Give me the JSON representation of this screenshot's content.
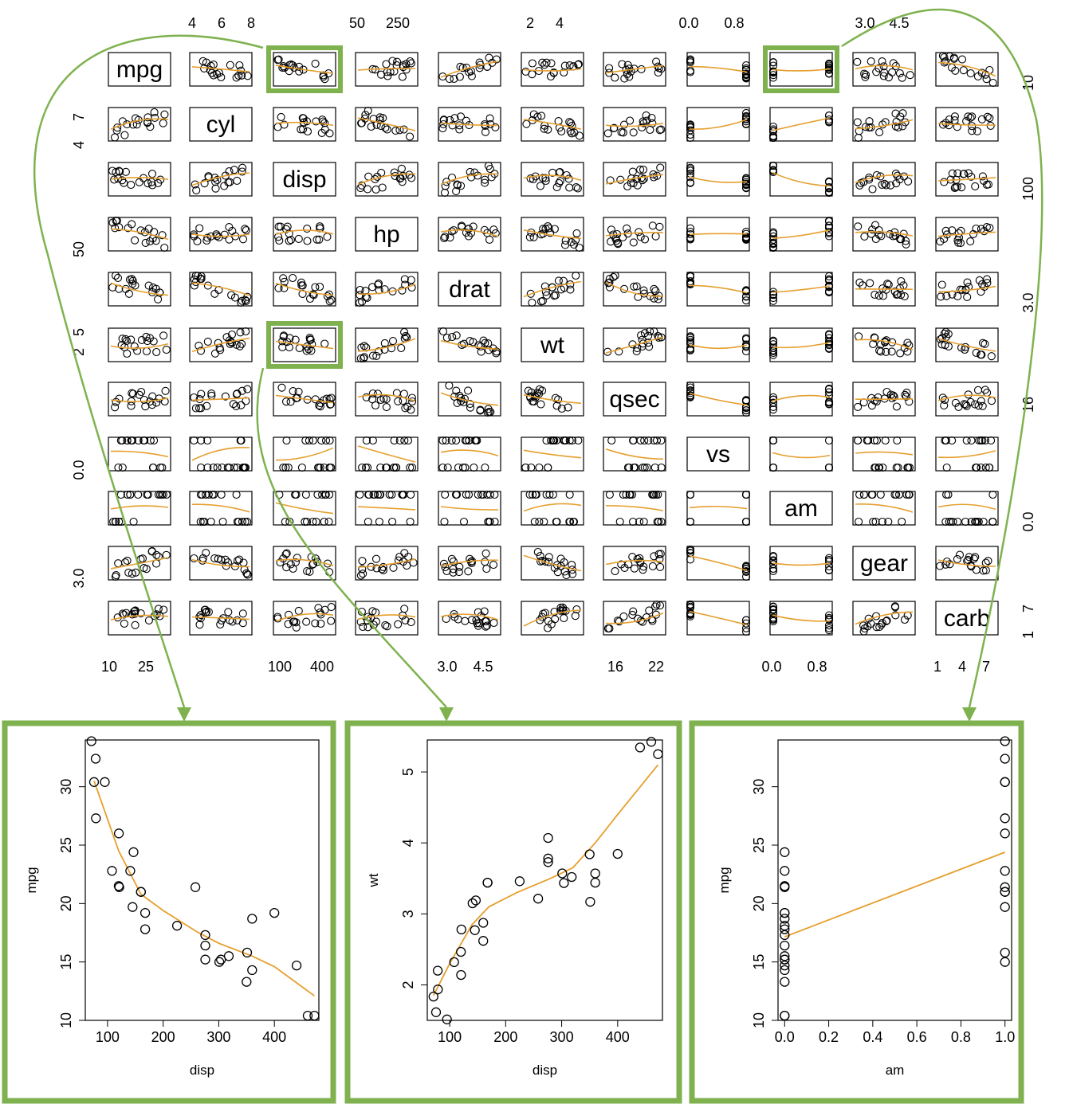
{
  "colors": {
    "accent": "#7fb24f",
    "smoother": "#e69f2e",
    "points": "#000000",
    "frame": "#000000"
  },
  "chart_data": [
    {
      "type": "scatter",
      "description_kind": "scatterplot-matrix",
      "variables": [
        "mpg",
        "cyl",
        "disp",
        "hp",
        "drat",
        "wt",
        "qsec",
        "vs",
        "am",
        "gear",
        "carb"
      ],
      "tick_labels": {
        "mpg": [
          "10",
          "25"
        ],
        "cyl": [
          "4",
          "6",
          "8",
          "4",
          "7"
        ],
        "disp": [
          "100",
          "400",
          "100"
        ],
        "hp": [
          "50",
          "250",
          "50"
        ],
        "drat": [
          "3.0",
          "4.5",
          "3.0"
        ],
        "wt": [
          "2",
          "4",
          "2",
          "5"
        ],
        "qsec": [
          "16",
          "22",
          "16"
        ],
        "vs": [
          "0.0",
          "0.8",
          "0.0"
        ],
        "am": [
          "0.0",
          "0.8",
          "0.0"
        ],
        "gear": [
          "3.0",
          "4.5",
          "3.0"
        ],
        "carb": [
          "1",
          "4",
          "7",
          "1",
          "7"
        ],
        "mpg_right": [
          "10"
        ]
      },
      "highlighted_panels": [
        {
          "row": "mpg",
          "col": "disp"
        },
        {
          "row": "wt",
          "col": "disp"
        },
        {
          "row": "mpg",
          "col": "am"
        }
      ],
      "has_smoother": true
    },
    {
      "type": "scatter",
      "title": "",
      "xlabel": "disp",
      "ylabel": "mpg",
      "xlim": [
        60,
        480
      ],
      "ylim": [
        10,
        34
      ],
      "xticks": [
        "100",
        "200",
        "300",
        "400"
      ],
      "yticks": [
        "10",
        "15",
        "20",
        "25",
        "30"
      ],
      "x": [
        160,
        160,
        108,
        258,
        360,
        225,
        360,
        146.7,
        140.8,
        167.6,
        167.6,
        275.8,
        275.8,
        275.8,
        472,
        460,
        440,
        78.7,
        75.7,
        71.1,
        120.1,
        318,
        304,
        350,
        400,
        79,
        120.3,
        95.1,
        351,
        145,
        301,
        121
      ],
      "y": [
        21,
        21,
        22.8,
        21.4,
        18.7,
        18.1,
        14.3,
        24.4,
        22.8,
        19.2,
        17.8,
        16.4,
        17.3,
        15.2,
        10.4,
        10.4,
        14.7,
        32.4,
        30.4,
        33.9,
        21.5,
        15.5,
        15.2,
        13.3,
        19.2,
        27.3,
        26,
        30.4,
        15.8,
        19.7,
        15,
        21.4
      ],
      "smoother": {
        "x": [
          75.7,
          120,
          160,
          200,
          260,
          300,
          360,
          400,
          472
        ],
        "y": [
          30.5,
          24.5,
          20.8,
          19.4,
          17.6,
          16.6,
          15.5,
          14.6,
          12.1
        ]
      }
    },
    {
      "type": "scatter",
      "title": "",
      "xlabel": "disp",
      "ylabel": "wt",
      "xlim": [
        60,
        480
      ],
      "ylim": [
        1.5,
        5.45
      ],
      "xticks": [
        "100",
        "200",
        "300",
        "400"
      ],
      "yticks": [
        "2",
        "3",
        "4",
        "5"
      ],
      "x": [
        160,
        160,
        108,
        258,
        360,
        225,
        360,
        146.7,
        140.8,
        167.6,
        167.6,
        275.8,
        275.8,
        275.8,
        472,
        460,
        440,
        78.7,
        75.7,
        71.1,
        120.1,
        318,
        304,
        350,
        400,
        79,
        120.3,
        95.1,
        351,
        145,
        301,
        121
      ],
      "y": [
        2.62,
        2.875,
        2.32,
        3.215,
        3.44,
        3.46,
        3.57,
        3.19,
        3.15,
        3.44,
        3.44,
        4.07,
        3.73,
        3.78,
        5.25,
        5.424,
        5.345,
        2.2,
        1.615,
        1.835,
        2.465,
        3.52,
        3.435,
        3.84,
        3.845,
        1.935,
        2.14,
        1.513,
        3.17,
        2.77,
        3.57,
        2.78
      ],
      "smoother": {
        "x": [
          71.1,
          100,
          140,
          170,
          220,
          280,
          320,
          360,
          400,
          472
        ],
        "y": [
          1.85,
          2.3,
          2.85,
          3.1,
          3.3,
          3.5,
          3.65,
          4.0,
          4.4,
          5.1
        ]
      }
    },
    {
      "type": "scatter",
      "title": "",
      "xlabel": "am",
      "ylabel": "mpg",
      "xlim": [
        -0.03,
        1.03
      ],
      "ylim": [
        10,
        34
      ],
      "xticks": [
        "0.0",
        "0.2",
        "0.4",
        "0.6",
        "0.8",
        "1.0"
      ],
      "yticks": [
        "10",
        "15",
        "20",
        "25",
        "30"
      ],
      "x": [
        1,
        1,
        1,
        0,
        0,
        0,
        0,
        0,
        0,
        0,
        0,
        0,
        0,
        0,
        0,
        0,
        0,
        1,
        1,
        1,
        0,
        0,
        0,
        0,
        0,
        1,
        1,
        1,
        1,
        1,
        1,
        1
      ],
      "y": [
        21,
        21,
        22.8,
        21.4,
        18.7,
        18.1,
        14.3,
        24.4,
        22.8,
        19.2,
        17.8,
        16.4,
        17.3,
        15.2,
        10.4,
        10.4,
        14.7,
        32.4,
        30.4,
        33.9,
        21.5,
        15.5,
        15.2,
        13.3,
        19.2,
        27.3,
        26,
        30.4,
        15.8,
        19.7,
        15,
        21.4
      ],
      "smoother": {
        "x": [
          0,
          1
        ],
        "y": [
          17.15,
          24.39
        ]
      }
    }
  ]
}
